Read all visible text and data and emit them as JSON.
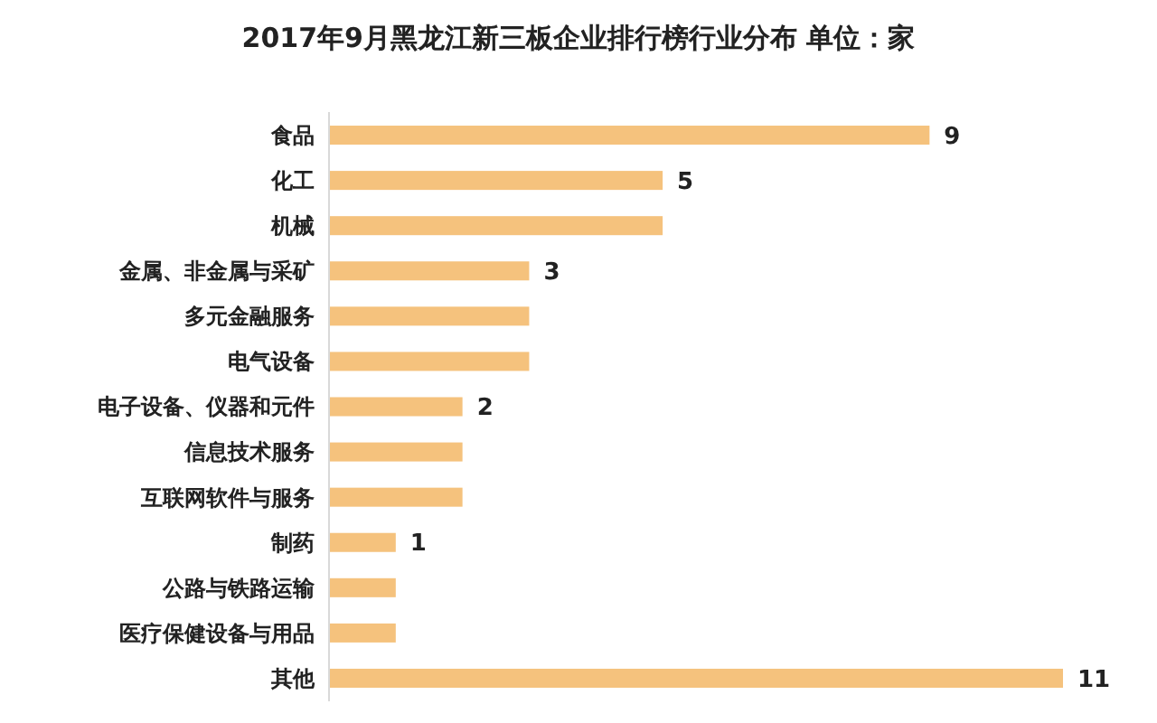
{
  "chart_data": {
    "type": "bar",
    "orientation": "horizontal",
    "title": "2017年9月黑龙江新三板企业排行榜行业分布 单位：家",
    "categories": [
      "食品",
      "化工",
      "机械",
      "金属、非金属与采矿",
      "多元金融服务",
      "电气设备",
      "电子设备、仪器和元件",
      "信息技术服务",
      "互联网软件与服务",
      "制药",
      "公路与铁路运输",
      "医疗保健设备与用品",
      "其他"
    ],
    "values": [
      9,
      5,
      5,
      3,
      3,
      3,
      2,
      2,
      2,
      1,
      1,
      1,
      11
    ],
    "value_labels": [
      "9",
      "5",
      null,
      "3",
      null,
      null,
      "2",
      null,
      null,
      "1",
      null,
      null,
      "11"
    ],
    "color": "#f5c27d"
  }
}
